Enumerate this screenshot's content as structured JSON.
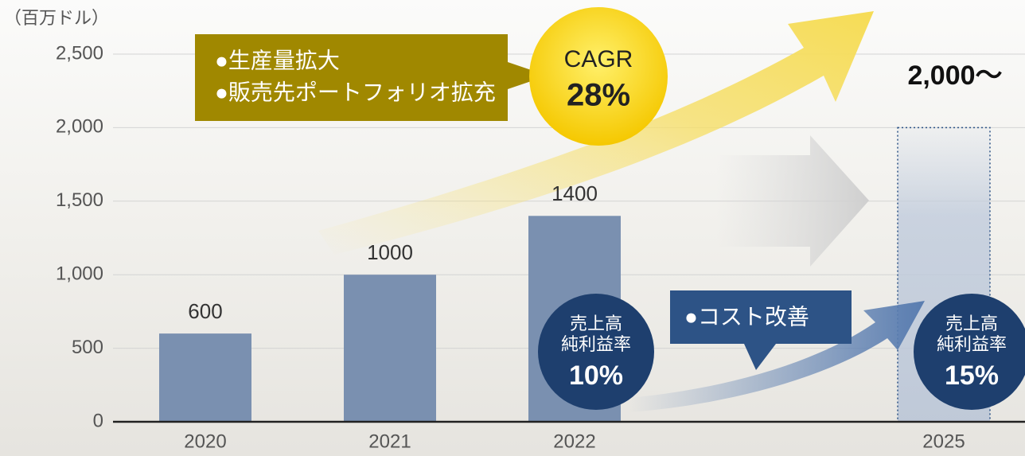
{
  "chart_data": {
    "type": "bar",
    "y_unit": "（百万ドル）",
    "categories": [
      "2020",
      "2021",
      "2022",
      null,
      "2025"
    ],
    "values": [
      600,
      1000,
      1400,
      null,
      2000
    ],
    "value_labels": [
      "600",
      "1000",
      "1400",
      null,
      "2,000～"
    ],
    "bar_styles": [
      "solid",
      "solid",
      "solid",
      null,
      "dashed"
    ],
    "color": "#7a90b0",
    "ylim": [
      0,
      2500
    ],
    "yticks": [
      0,
      500,
      {
        "value": 1000,
        "label": "1,000"
      },
      {
        "value": 1500,
        "label": "1,500"
      },
      {
        "value": 2000,
        "label": "2,000"
      },
      {
        "value": 2500,
        "label": "2,500"
      }
    ],
    "grid": true,
    "annotations": {
      "callout_items": [
        "●生産量拡大",
        "●販売先ポートフォリオ拡充"
      ],
      "cagr_label": "CAGR",
      "cagr_value": "28%",
      "margin_2022": {
        "lines": [
          "売上高",
          "純利益率"
        ],
        "value": "10%"
      },
      "margin_2025": {
        "lines": [
          "売上高",
          "純利益率"
        ],
        "value": "15%"
      },
      "cost_item": "●コスト改善"
    }
  }
}
